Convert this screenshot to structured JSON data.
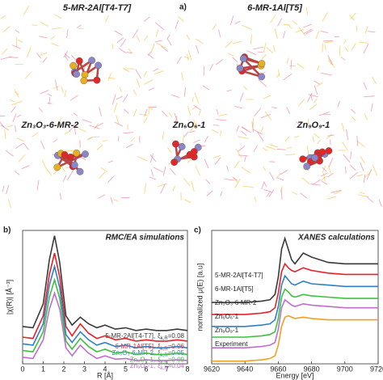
{
  "structures": {
    "label": "a)",
    "items": [
      {
        "label": "5-MR-2Al[T4-T7]"
      },
      {
        "label": "6-MR-1Al[T5]"
      },
      {
        "label": "Zn₃O₃-6-MR-2"
      },
      {
        "label": "Zn₆O₆-1"
      },
      {
        "label": "Zn₉O₉-1"
      }
    ]
  },
  "chart_data": [
    {
      "type": "line",
      "panel_label": "b)",
      "title": "RMC/EA simulations",
      "x_label": "R [Å]",
      "y_label": "|χ(R)| [Å⁻³]",
      "xi_symbol": "ξ",
      "xi_subscript": "k,R",
      "xlim": [
        0,
        8
      ],
      "xticks": [
        0,
        1,
        2,
        3,
        4,
        5,
        6,
        7,
        8
      ],
      "ylim": [
        0,
        10
      ],
      "x": [
        0,
        0.5,
        1.0,
        1.3,
        1.55,
        1.8,
        2.1,
        2.4,
        2.8,
        3.2,
        3.6,
        4.0,
        4.5,
        5,
        5.5,
        6,
        6.5,
        7,
        7.5,
        8
      ],
      "series": [
        {
          "name": "5-MR-2Al[T4-T7],",
          "xi_label": "=0.08",
          "color": "#3a3a3a",
          "values": [
            2.8,
            2.7,
            4.5,
            7.8,
            9.6,
            7.6,
            3.6,
            2.9,
            3.5,
            3.0,
            2.7,
            2.9,
            2.6,
            2.7,
            2.5,
            2.6,
            2.5,
            2.5,
            2.6,
            2.5
          ]
        },
        {
          "name": "6-MR-1Al[T5],",
          "xi_label": "=0.06",
          "color": "#e8202a",
          "values": [
            2.0,
            1.9,
            3.6,
            6.7,
            8.3,
            6.5,
            2.8,
            2.1,
            3.0,
            2.3,
            1.9,
            2.1,
            1.8,
            1.9,
            1.7,
            1.8,
            1.7,
            1.7,
            1.8,
            1.7
          ]
        },
        {
          "name": "Zn₃O₃-6-MR-2,",
          "xi_label": "=0.05",
          "color": "#2f7fc8",
          "values": [
            1.5,
            1.4,
            3.0,
            5.9,
            7.3,
            5.7,
            2.2,
            1.6,
            2.4,
            1.8,
            1.4,
            1.6,
            1.3,
            1.4,
            1.2,
            1.3,
            1.2,
            1.2,
            1.3,
            1.2
          ]
        },
        {
          "name": "Zn₆O₆-1,",
          "xi_label": "=0.09",
          "color": "#3ec03e",
          "values": [
            1.0,
            0.9,
            2.4,
            5.0,
            6.3,
            4.9,
            1.7,
            1.1,
            1.9,
            1.3,
            0.9,
            1.1,
            0.8,
            0.9,
            0.7,
            0.8,
            0.7,
            0.7,
            0.8,
            0.7
          ]
        },
        {
          "name": "Zn₉O₉-1,",
          "xi_label": "=0.04",
          "color": "#c06cd0",
          "values": [
            0.5,
            0.4,
            1.8,
            4.1,
            5.3,
            4.1,
            1.2,
            0.6,
            1.4,
            0.8,
            0.4,
            0.6,
            0.35,
            0.4,
            0.25,
            0.3,
            0.25,
            0.25,
            0.3,
            0.25
          ]
        }
      ]
    },
    {
      "type": "line",
      "panel_label": "c)",
      "title": "XANES calculations",
      "x_label": "Energy [eV]",
      "y_label": "normalized μ(E) [a.u]",
      "xlim": [
        9620,
        9720
      ],
      "xticks": [
        9620,
        9640,
        9660,
        9680,
        9700,
        9720
      ],
      "ylim": [
        0,
        10
      ],
      "x": [
        9620,
        9640,
        9650,
        9655,
        9658,
        9660,
        9662,
        9664,
        9666,
        9668,
        9670,
        9675,
        9680,
        9690,
        9700,
        9710,
        9720
      ],
      "series": [
        {
          "name": "5-MR-2Al[T4-T7]",
          "color": "#3a3a3a",
          "values": [
            4.6,
            4.6,
            4.7,
            4.8,
            5.2,
            6.5,
            8.6,
            9.4,
            8.6,
            7.8,
            7.5,
            8.3,
            8.0,
            7.6,
            7.5,
            7.5,
            7.5
          ]
        },
        {
          "name": "6-MR-1Al[T5]",
          "color": "#e8202a",
          "values": [
            3.7,
            3.7,
            3.8,
            3.9,
            4.2,
            5.3,
            6.9,
            7.5,
            7.2,
            7.0,
            6.9,
            7.2,
            7.0,
            6.8,
            6.7,
            6.7,
            6.7
          ]
        },
        {
          "name": "Zn₃O₃-6-MR-2",
          "color": "#2f7fc8",
          "values": [
            2.8,
            2.8,
            2.9,
            3.0,
            3.3,
            4.3,
            5.9,
            6.6,
            6.3,
            6.0,
            5.9,
            6.2,
            6.0,
            5.9,
            5.8,
            5.8,
            5.8
          ]
        },
        {
          "name": "Zn₆O₆-1",
          "color": "#3ec03e",
          "values": [
            2.0,
            2.0,
            2.1,
            2.2,
            2.4,
            3.4,
            5.0,
            5.6,
            5.4,
            5.1,
            5.0,
            5.2,
            5.1,
            5.0,
            4.9,
            4.9,
            4.9
          ]
        },
        {
          "name": "Zn₉O₉-1",
          "color": "#c06cd0",
          "values": [
            1.2,
            1.2,
            1.3,
            1.4,
            1.6,
            2.6,
            4.2,
            4.8,
            4.6,
            4.4,
            4.3,
            4.5,
            4.4,
            4.3,
            4.2,
            4.2,
            4.2
          ]
        },
        {
          "name": "Experiment",
          "color": "#f0a020",
          "values": [
            0.2,
            0.2,
            0.3,
            0.4,
            0.6,
            1.4,
            2.8,
            3.5,
            3.6,
            3.5,
            3.4,
            3.5,
            3.4,
            3.3,
            3.3,
            3.3,
            3.3
          ]
        }
      ]
    }
  ]
}
